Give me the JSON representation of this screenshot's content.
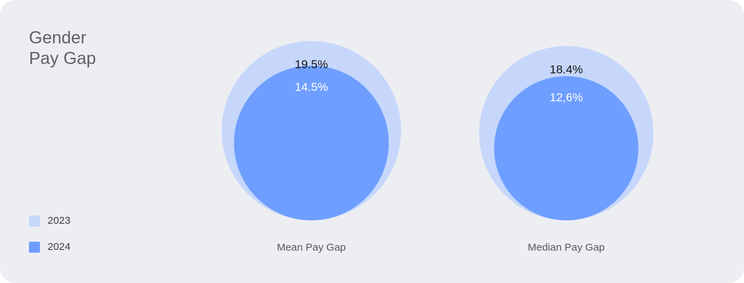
{
  "chart_data": {
    "type": "nested-bubble",
    "title": "Gender Pay Gap",
    "categories": [
      "Mean Pay Gap",
      "Median Pay Gap"
    ],
    "series": [
      {
        "name": "2023",
        "color": "#c6d7fb",
        "label_color": "#111111",
        "values": [
          19.5,
          18.4
        ],
        "value_labels": [
          "19.5%",
          "18.4%"
        ]
      },
      {
        "name": "2024",
        "color": "#6e9eff",
        "label_color": "#ffffff",
        "values": [
          14.5,
          12.6
        ],
        "value_labels": [
          "14.5%",
          "12,6%"
        ]
      }
    ]
  }
}
